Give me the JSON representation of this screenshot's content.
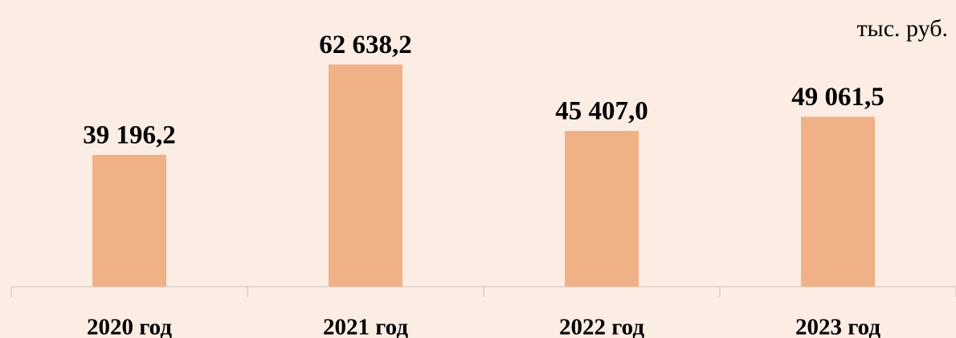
{
  "chart_data": {
    "type": "bar",
    "unit": "тыс. руб.",
    "categories": [
      "2020 год",
      "2021 год",
      "2022 год",
      "2023 год"
    ],
    "values": [
      39196.2,
      62638.2,
      45407.0,
      49061.5
    ],
    "value_labels": [
      "39 196,2",
      "62 638,2",
      "45 407,0",
      "49 061,5"
    ],
    "color": "#f0b187",
    "ylim": [
      5000,
      65000
    ]
  }
}
